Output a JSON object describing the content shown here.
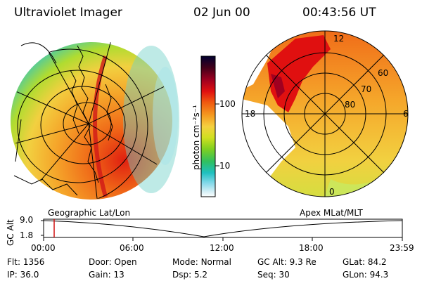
{
  "header": {
    "instrument": "Ultraviolet Imager",
    "date": "02 Jun 00",
    "time": "00:43:56 UT"
  },
  "colorbar": {
    "unit_label": "photon cm⁻²s⁻¹",
    "tick_labels": [
      "100",
      "10"
    ],
    "stops": [
      "#000030",
      "#40001a",
      "#a00020",
      "#e01010",
      "#f05a10",
      "#f59a20",
      "#f5d040",
      "#d0e020",
      "#80d020",
      "#30c060",
      "#20c0c0",
      "#80d8e8",
      "#d0eef5",
      "#ffffff"
    ]
  },
  "left_panel": {
    "label": "Geographic Lat/Lon"
  },
  "right_panel": {
    "label": "Apex MLat/MLT",
    "mlt_labels": [
      "12",
      "18",
      "6",
      "0"
    ],
    "mlat_labels": [
      "60",
      "70",
      "80"
    ]
  },
  "altitude_plot": {
    "ylabel": "GC Alt",
    "yticks": [
      "9.0",
      "1.8"
    ],
    "xticks": [
      "00:00",
      "06:00",
      "12:00",
      "18:00",
      "23:59"
    ],
    "marker_color": "#d01010"
  },
  "info": {
    "row1": [
      {
        "key": "Flt:",
        "value": "1356"
      },
      {
        "key": "Door:",
        "value": "Open"
      },
      {
        "key": "Mode:",
        "value": "Normal"
      },
      {
        "key": "GC Alt:",
        "value": "9.3 Re"
      },
      {
        "key": "GLat:",
        "value": "84.2"
      }
    ],
    "row2": [
      {
        "key": "IP:",
        "value": "36.0"
      },
      {
        "key": "Gain:",
        "value": "13"
      },
      {
        "key": "Dsp:",
        "value": "5.2"
      },
      {
        "key": "Seq:",
        "value": "30"
      },
      {
        "key": "GLon:",
        "value": "94.3"
      }
    ]
  }
}
